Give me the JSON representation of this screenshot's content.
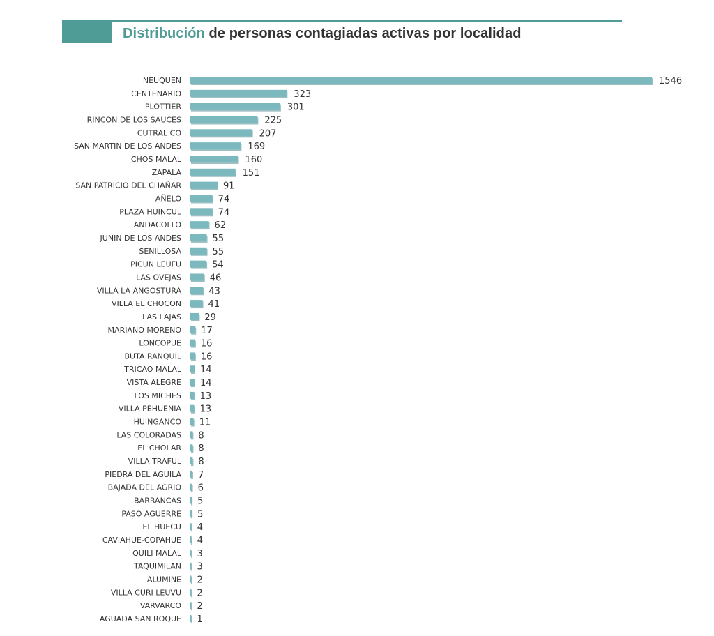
{
  "title": {
    "accent": "Distribución",
    "rest": " de personas contagiadas activas por localidad"
  },
  "colors": {
    "accent": "#4f9b95",
    "bar": "#7bb9be",
    "bar_shadow": "#5a9499"
  },
  "chart_data": {
    "type": "bar",
    "orientation": "horizontal",
    "title": "Distribución de personas contagiadas activas por localidad",
    "xlabel": "",
    "ylabel": "",
    "xlim": [
      0,
      1546
    ],
    "grid": false,
    "categories": [
      "NEUQUEN",
      "CENTENARIO",
      "PLOTTIER",
      "RINCON DE LOS SAUCES",
      "CUTRAL CO",
      "SAN MARTIN DE LOS ANDES",
      "CHOS MALAL",
      "ZAPALA",
      "SAN PATRICIO DEL CHAÑAR",
      "AÑELO",
      "PLAZA HUINCUL",
      "ANDACOLLO",
      "JUNIN DE LOS ANDES",
      "SENILLOSA",
      "PICUN LEUFU",
      "LAS OVEJAS",
      "VILLA LA ANGOSTURA",
      "VILLA EL CHOCON",
      "LAS LAJAS",
      "MARIANO MORENO",
      "LONCOPUE",
      "BUTA RANQUIL",
      "TRICAO MALAL",
      "VISTA ALEGRE",
      "LOS MICHES",
      "VILLA PEHUENIA",
      "HUINGANCO",
      "LAS COLORADAS",
      "EL CHOLAR",
      "VILLA TRAFUL",
      "PIEDRA DEL AGUILA",
      "BAJADA DEL AGRIO",
      "BARRANCAS",
      "PASO AGUERRE",
      "EL HUECU",
      "CAVIAHUE-COPAHUE",
      "QUILI MALAL",
      "TAQUIMILAN",
      "ALUMINE",
      "VILLA CURI LEUVU",
      "VARVARCO",
      "AGUADA SAN ROQUE"
    ],
    "values": [
      1546,
      323,
      301,
      225,
      207,
      169,
      160,
      151,
      91,
      74,
      74,
      62,
      55,
      55,
      54,
      46,
      43,
      41,
      29,
      17,
      16,
      16,
      14,
      14,
      13,
      13,
      11,
      8,
      8,
      8,
      7,
      6,
      5,
      5,
      4,
      4,
      3,
      3,
      2,
      2,
      2,
      1
    ]
  }
}
